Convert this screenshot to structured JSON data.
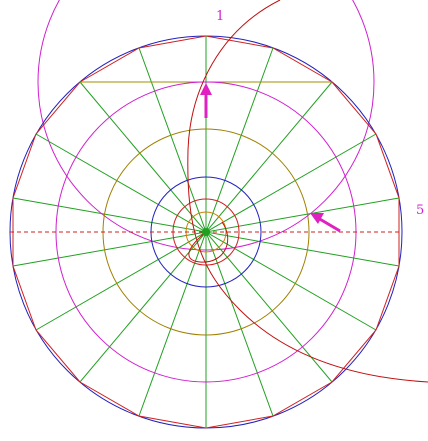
{
  "labels": [
    "1",
    "5"
  ]
}
